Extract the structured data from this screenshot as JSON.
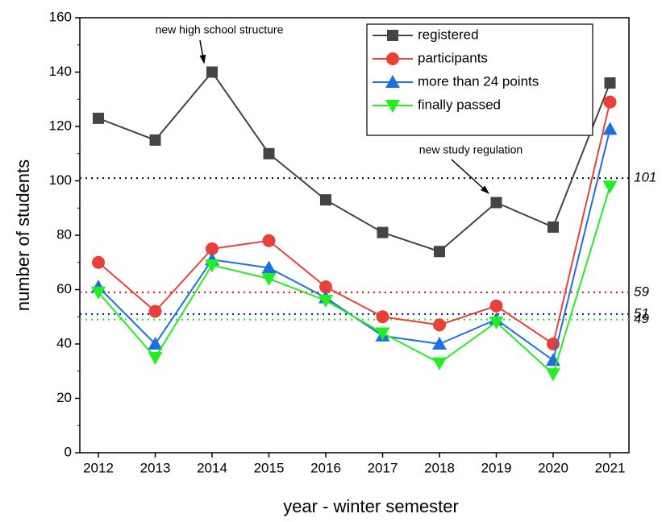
{
  "chart_data": {
    "type": "line",
    "xlabel": "year - winter semester",
    "ylabel": "number of students",
    "categories": [
      "2012",
      "2013",
      "2014",
      "2015",
      "2016",
      "2017",
      "2018",
      "2019",
      "2020",
      "2021"
    ],
    "series": [
      {
        "name": "registered",
        "color": "#444444",
        "marker": "square",
        "values": [
          123,
          115,
          140,
          110,
          93,
          81,
          74,
          92,
          83,
          136
        ]
      },
      {
        "name": "participants",
        "color": "#e8413b",
        "marker": "circle",
        "values": [
          70,
          52,
          75,
          78,
          61,
          50,
          47,
          54,
          40,
          129
        ]
      },
      {
        "name": "more than 24 points",
        "color": "#1f6fe0",
        "marker": "triangle-up",
        "values": [
          61,
          40,
          71,
          68,
          57,
          43,
          40,
          49,
          34,
          119
        ]
      },
      {
        "name": "finally passed",
        "color": "#22ee22",
        "marker": "triangle-down",
        "values": [
          59,
          35,
          69,
          64,
          56,
          44,
          33,
          48,
          29,
          98
        ]
      }
    ],
    "reference_lines": [
      {
        "value": 101,
        "color": "#000000"
      },
      {
        "value": 59,
        "color": "#e8000b"
      },
      {
        "value": 51,
        "color": "#0000e0"
      },
      {
        "value": 49,
        "color": "#22ee22"
      }
    ],
    "annotations": [
      {
        "text": "new high school structure",
        "category": 2
      },
      {
        "text": "new study regulation",
        "category": 7
      }
    ],
    "ylim": [
      0,
      160
    ],
    "yticks": [
      0,
      20,
      40,
      60,
      80,
      100,
      120,
      140,
      160
    ],
    "legend": "upper right"
  }
}
